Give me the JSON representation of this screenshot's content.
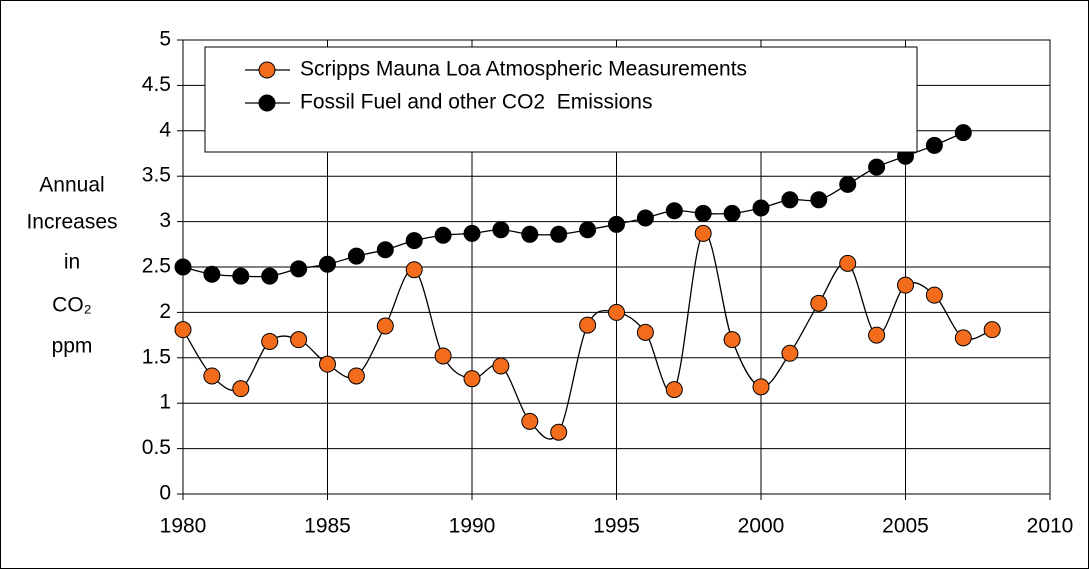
{
  "chart_data": {
    "type": "line",
    "y_label_lines": [
      "Annual",
      "Increases",
      "in",
      "CO₂",
      "ppm"
    ],
    "x": [
      1980,
      1981,
      1982,
      1983,
      1984,
      1985,
      1986,
      1987,
      1988,
      1989,
      1990,
      1991,
      1992,
      1993,
      1994,
      1995,
      1996,
      1997,
      1998,
      1999,
      2000,
      2001,
      2002,
      2003,
      2004,
      2005,
      2006,
      2007,
      2008
    ],
    "series": [
      {
        "name": "Scripps Mauna Loa Atmospheric Measurements",
        "color": "#f26c1c",
        "values": [
          1.81,
          1.3,
          1.16,
          1.68,
          1.7,
          1.43,
          1.3,
          1.85,
          2.47,
          1.52,
          1.27,
          1.41,
          0.8,
          0.68,
          1.86,
          2.0,
          1.78,
          1.15,
          2.87,
          1.7,
          1.18,
          1.55,
          2.1,
          2.54,
          1.75,
          2.3,
          2.19,
          1.72,
          1.81
        ]
      },
      {
        "name": "Fossil Fuel and other CO2  Emissions",
        "color": "#000000",
        "values": [
          2.5,
          2.42,
          2.4,
          2.4,
          2.48,
          2.53,
          2.62,
          2.69,
          2.79,
          2.85,
          2.87,
          2.91,
          2.86,
          2.86,
          2.91,
          2.97,
          3.04,
          3.12,
          3.09,
          3.09,
          3.15,
          3.24,
          3.24,
          3.41,
          3.6,
          3.72,
          3.84,
          3.98,
          null
        ]
      }
    ],
    "xlim": [
      1980,
      2010
    ],
    "xticks": [
      1980,
      1985,
      1990,
      1995,
      2000,
      2005,
      2010
    ],
    "ylim": [
      0,
      5
    ],
    "yticks": [
      0,
      0.5,
      1,
      1.5,
      2,
      2.5,
      3,
      3.5,
      4,
      4.5,
      5
    ],
    "grid": true
  }
}
